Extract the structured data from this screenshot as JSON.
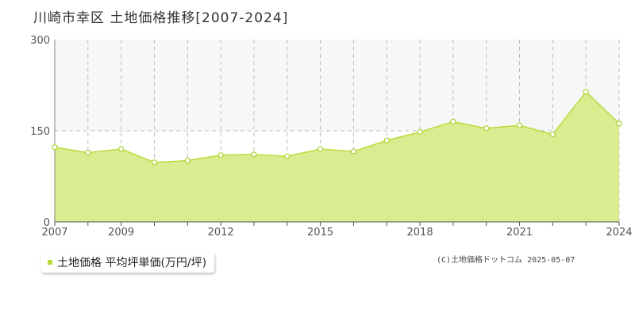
{
  "title": "川崎市幸区 土地価格推移[2007-2024]",
  "legend": {
    "label": "土地価格 平均坪単価(万円/坪)"
  },
  "copyright": "(C)土地価格ドットコム 2025-05-07",
  "colors": {
    "area_fill": "#d9ec8f",
    "line": "#b8dc3c",
    "marker_fill": "#ffffff",
    "marker_stroke": "#a8d22c",
    "upper_band": "#f7f7f7",
    "grid": "#bdbdbd"
  },
  "chart_data": {
    "type": "area",
    "x": [
      2007,
      2008,
      2009,
      2010,
      2011,
      2012,
      2013,
      2014,
      2015,
      2016,
      2017,
      2018,
      2019,
      2020,
      2021,
      2022,
      2023,
      2024
    ],
    "series": [
      {
        "name": "土地価格 平均坪単価(万円/坪)",
        "values": [
          123,
          114,
          120,
          98,
          101,
          110,
          111,
          108,
          120,
          116,
          134,
          148,
          165,
          154,
          159,
          144,
          214,
          162
        ]
      }
    ],
    "x_tick_labels": [
      "2007",
      "2009",
      "2012",
      "2015",
      "2018",
      "2021",
      "2024"
    ],
    "y_ticks": [
      0,
      150,
      300
    ],
    "ylim": [
      0,
      300
    ],
    "xlim": [
      2007,
      2024
    ],
    "grid": true,
    "legend_position": "bottom-left"
  }
}
